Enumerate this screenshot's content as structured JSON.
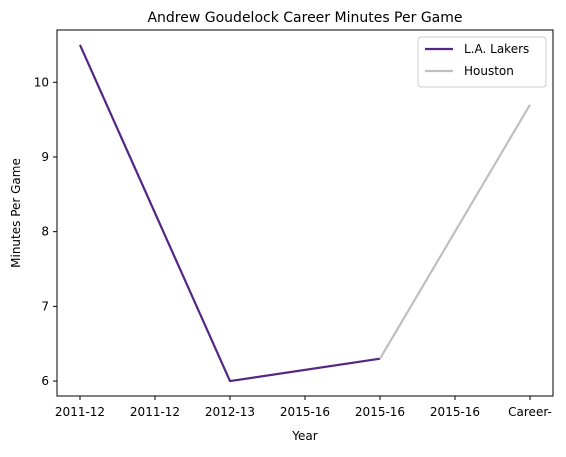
{
  "chart_data": {
    "type": "line",
    "title": "Andrew Goudelock Career Minutes Per Game",
    "xlabel": "Year",
    "ylabel": "Minutes Per Game",
    "categories": [
      "2011-12",
      "2011-12",
      "2012-13",
      "2015-16",
      "2015-16",
      "2015-16",
      "Career-"
    ],
    "yticks": [
      6,
      7,
      8,
      9,
      10
    ],
    "ylim": [
      5.8,
      10.7
    ],
    "grid": false,
    "legend_placement": "top-right",
    "series": [
      {
        "name": "L.A. Lakers",
        "color": "#552583",
        "points": [
          {
            "x_index": 0,
            "y": 10.5
          },
          {
            "x_index": 2,
            "y": 6.0
          },
          {
            "x_index": 4,
            "y": 6.3
          }
        ]
      },
      {
        "name": "Houston",
        "color": "#bfbfbf",
        "points": [
          {
            "x_index": 4,
            "y": 6.3
          },
          {
            "x_index": 6,
            "y": 9.7
          }
        ]
      }
    ]
  }
}
